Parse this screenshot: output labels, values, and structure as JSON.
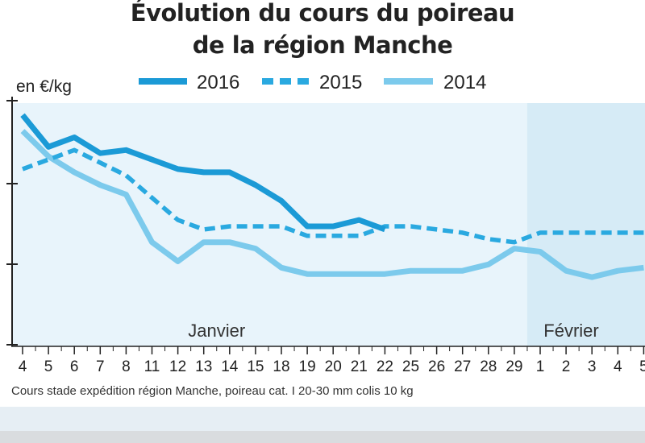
{
  "chart_data": {
    "type": "line",
    "title": "Évolution du cours du poireau de la région Manche",
    "title_lines": [
      "Évolution du cours du poireau",
      "de la région Manche"
    ],
    "ylabel": "en €/kg",
    "categories": [
      "4",
      "5",
      "6",
      "7",
      "8",
      "11",
      "12",
      "13",
      "14",
      "15",
      "18",
      "19",
      "20",
      "21",
      "22",
      "25",
      "26",
      "27",
      "28",
      "29",
      "1",
      "2",
      "3",
      "4",
      "5"
    ],
    "month_labels": [
      {
        "label": "Janvier",
        "at_index": 7.5
      },
      {
        "label": "Février",
        "at_index": 21.2
      }
    ],
    "ylim": [
      0.4,
      1.15
    ],
    "legend_position": "top",
    "series": [
      {
        "name": "2016",
        "style": "solid-thick",
        "color": "#1b9ad6",
        "values": [
          1.12,
          1.02,
          1.05,
          1.0,
          1.01,
          0.98,
          0.95,
          0.94,
          0.94,
          0.9,
          0.85,
          0.77,
          0.77,
          0.79,
          0.76,
          null,
          null,
          null,
          null,
          null,
          null,
          null,
          null,
          null,
          null
        ]
      },
      {
        "name": "2015",
        "style": "dashed",
        "color": "#2aa9e0",
        "values": [
          0.95,
          0.98,
          1.01,
          0.97,
          0.93,
          0.86,
          0.79,
          0.76,
          0.77,
          0.77,
          0.77,
          0.74,
          0.74,
          0.74,
          0.77,
          0.77,
          0.76,
          0.75,
          0.73,
          0.72,
          0.75,
          0.75,
          0.75,
          0.75,
          0.75
        ]
      },
      {
        "name": "2014",
        "style": "solid-light",
        "color": "#7ccaec",
        "values": [
          1.07,
          0.99,
          0.94,
          0.9,
          0.87,
          0.72,
          0.66,
          0.72,
          0.72,
          0.7,
          0.64,
          0.62,
          0.62,
          0.62,
          0.62,
          0.63,
          0.63,
          0.63,
          0.65,
          0.7,
          0.69,
          0.63,
          0.61,
          0.63,
          0.64
        ]
      }
    ],
    "grid": false,
    "shaded_region": "Février",
    "colors": {
      "plot_bg": "#e8f4fb",
      "feb_bg": "#d6ebf6",
      "axis": "#222222"
    }
  },
  "caption": "Cours stade expédition région Manche, poireau cat. I 20-30 mm colis 10 kg"
}
